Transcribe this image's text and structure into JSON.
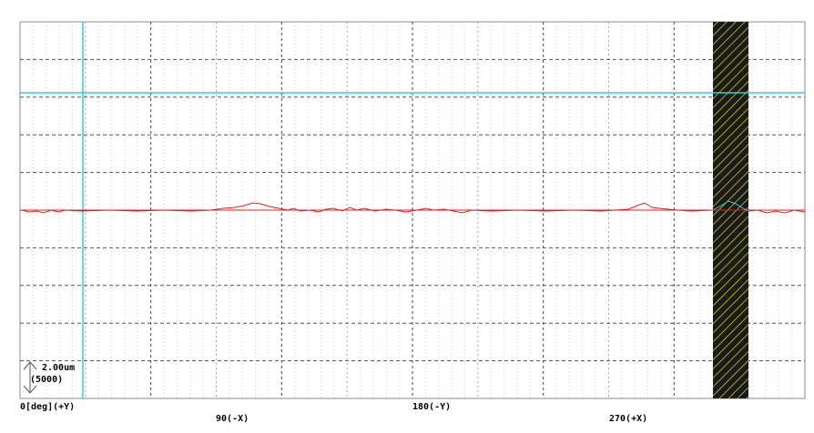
{
  "plot": {
    "scale": {
      "length": "2.00um",
      "magnification": "(5000)"
    },
    "x_labels": [
      "0[deg](+Y)",
      "90(-X)",
      "180(-Y)",
      "270(+X)"
    ]
  }
}
